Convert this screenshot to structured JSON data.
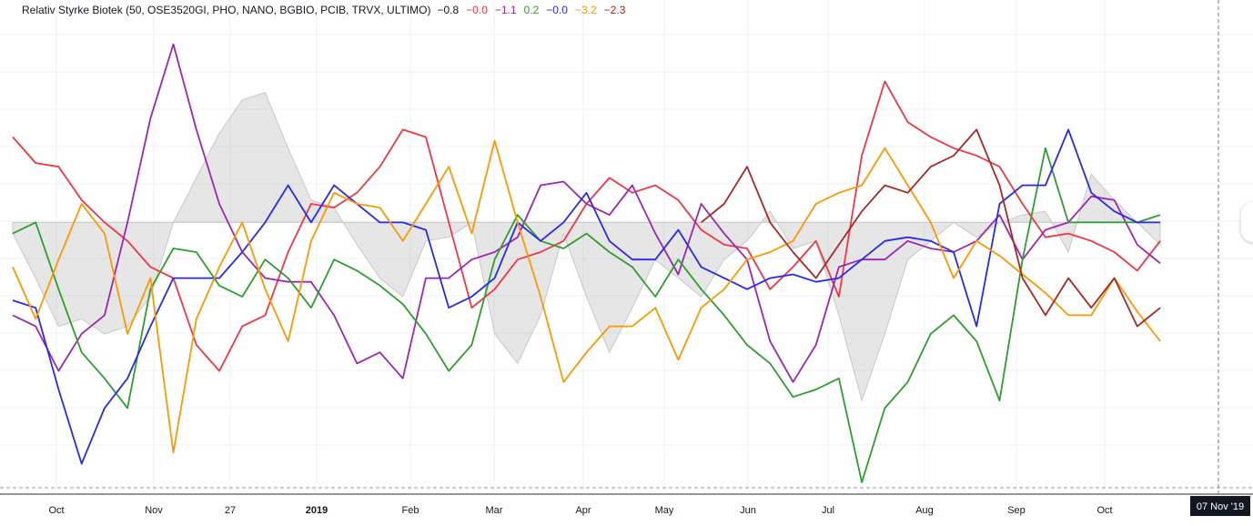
{
  "indicator": {
    "title": "Relativ Styrke Biotek (50, OSE3520GI, PHO, NANO, BGBIO, PCIB, TRVX, ULTIMO)",
    "values": [
      {
        "text": "−0.8",
        "color": "#131722"
      },
      {
        "text": "−0.0",
        "color": "#f23645"
      },
      {
        "text": "−1.1",
        "color": "#9c27b0"
      },
      {
        "text": "0.2",
        "color": "#2e9e2e"
      },
      {
        "text": "−0.0",
        "color": "#2a2ae8"
      },
      {
        "text": "−3.2",
        "color": "#ff9800"
      },
      {
        "text": "−2.3",
        "color": "#b71c1c"
      }
    ]
  },
  "x_axis": {
    "ticks": [
      "Oct",
      "Nov",
      "27",
      "2019",
      "Feb",
      "Mar",
      "Apr",
      "May",
      "Jun",
      "Jul",
      "Aug",
      "Sep",
      "Oct"
    ],
    "cursor_label": "07 Nov '19"
  },
  "chart_data": {
    "type": "line",
    "x_domain": [
      0,
      100
    ],
    "ylim": [
      -7,
      5.5
    ],
    "grid": true,
    "band": {
      "name": "",
      "x": [
        0,
        2,
        4,
        6,
        8,
        10,
        12,
        14,
        16,
        18,
        20,
        22,
        24,
        26,
        28,
        30,
        32,
        34,
        36,
        38,
        40,
        42,
        44,
        46,
        48,
        50,
        52,
        54,
        56,
        58,
        60,
        62,
        64,
        66,
        68,
        70,
        72,
        74,
        76,
        78,
        80,
        82,
        84,
        86,
        88,
        90,
        92,
        94,
        96,
        98,
        100
      ],
      "values": [
        -0.3,
        -1.5,
        -2.8,
        -2.6,
        -3.0,
        -2.8,
        -2.0,
        0.0,
        1.2,
        2.4,
        3.3,
        3.5,
        2.0,
        0.6,
        0.4,
        -0.6,
        -1.5,
        -2.0,
        -0.5,
        -0.4,
        0.0,
        -3.0,
        -3.8,
        -2.5,
        -0.3,
        -2.0,
        -3.5,
        -2.3,
        -1.0,
        -1.5,
        -2.0,
        -1.0,
        -0.5,
        0.3,
        -0.7,
        -0.5,
        -2.5,
        -4.8,
        -3.0,
        -1.0,
        -0.5,
        0.0,
        -0.4,
        0.0,
        0.2,
        0.3,
        -0.8,
        1.3,
        0.6,
        0.0,
        -0.6
      ]
    },
    "series": [
      {
        "color": "#f23645",
        "x": [
          0,
          2,
          4,
          6,
          8,
          10,
          12,
          14,
          16,
          18,
          20,
          22,
          24,
          26,
          28,
          30,
          32,
          34,
          36,
          38,
          40,
          42,
          44,
          46,
          48,
          50,
          52,
          54,
          56,
          58,
          60,
          62,
          64,
          66,
          68,
          70,
          72,
          74,
          76,
          78,
          80,
          82,
          84,
          86,
          88,
          90,
          92,
          94,
          96,
          98,
          100
        ],
        "values": [
          2.3,
          1.6,
          1.5,
          0.6,
          0.0,
          -0.5,
          -1.2,
          -1.5,
          -3.3,
          -4.0,
          -2.8,
          -2.5,
          -0.8,
          0.5,
          0.4,
          0.8,
          1.5,
          2.5,
          2.3,
          0.0,
          -2.3,
          -1.8,
          -1.0,
          -0.8,
          -0.5,
          0.5,
          1.2,
          0.8,
          1.0,
          0.6,
          -0.2,
          -0.6,
          -0.7,
          -1.8,
          -1.2,
          -0.5,
          -2.0,
          1.8,
          3.8,
          2.7,
          2.3,
          2.0,
          1.8,
          1.5,
          0.5,
          -0.4,
          -0.3,
          -0.5,
          -0.8,
          -1.3,
          -0.5
        ]
      },
      {
        "color": "#9c27b0",
        "x": [
          0,
          2,
          4,
          6,
          8,
          10,
          12,
          14,
          16,
          18,
          20,
          22,
          24,
          26,
          28,
          30,
          32,
          34,
          36,
          38,
          40,
          42,
          44,
          46,
          48,
          50,
          52,
          54,
          56,
          58,
          60,
          62,
          64,
          66,
          68,
          70,
          72,
          74,
          76,
          78,
          80,
          82,
          84,
          86,
          88,
          90,
          92,
          94,
          96,
          98,
          100
        ],
        "values": [
          -2.5,
          -2.8,
          -4.0,
          -3.0,
          -2.5,
          0.0,
          2.8,
          4.8,
          2.5,
          0.5,
          -0.8,
          -1.5,
          -1.6,
          -1.6,
          -2.5,
          -3.8,
          -3.5,
          -4.2,
          -1.5,
          -1.5,
          -1.0,
          -0.8,
          -0.4,
          1.0,
          1.1,
          0.5,
          0.2,
          1.0,
          -0.3,
          -1.4,
          0.5,
          -0.3,
          -1.0,
          -3.2,
          -4.3,
          -3.3,
          -1.2,
          -1.0,
          -1.0,
          -0.5,
          -0.7,
          -0.8,
          -0.5,
          0.2,
          -1.0,
          -0.2,
          0.0,
          0.7,
          0.6,
          -0.6,
          -1.1
        ]
      },
      {
        "color": "#2e9e2e",
        "x": [
          0,
          2,
          4,
          6,
          8,
          10,
          12,
          14,
          16,
          18,
          20,
          22,
          24,
          26,
          28,
          30,
          32,
          34,
          36,
          38,
          40,
          42,
          44,
          46,
          48,
          50,
          52,
          54,
          56,
          58,
          60,
          62,
          64,
          66,
          68,
          70,
          72,
          74,
          76,
          78,
          80,
          82,
          84,
          86,
          88,
          90,
          92,
          94,
          96,
          98,
          100
        ],
        "values": [
          -0.3,
          0.0,
          -1.8,
          -3.5,
          -4.2,
          -5.0,
          -1.8,
          -0.7,
          -0.8,
          -1.7,
          -2.0,
          -1.0,
          -1.5,
          -2.3,
          -1.0,
          -1.3,
          -1.7,
          -2.2,
          -3.0,
          -4.0,
          -3.3,
          -1.0,
          0.2,
          -0.5,
          -0.7,
          -0.3,
          -0.8,
          -1.2,
          -2.0,
          -1.0,
          -1.8,
          -2.5,
          -3.3,
          -3.8,
          -4.7,
          -4.5,
          -4.2,
          -7.0,
          -5.0,
          -4.3,
          -3.0,
          -2.5,
          -3.2,
          -4.8,
          -1.0,
          2.0,
          0.0,
          0.0,
          0.0,
          0.0,
          0.2
        ]
      },
      {
        "color": "#2a2ae8",
        "x": [
          0,
          2,
          4,
          6,
          8,
          10,
          12,
          14,
          16,
          18,
          20,
          22,
          24,
          26,
          28,
          30,
          32,
          34,
          36,
          38,
          40,
          42,
          44,
          46,
          48,
          50,
          52,
          54,
          56,
          58,
          60,
          62,
          64,
          66,
          68,
          70,
          72,
          74,
          76,
          78,
          80,
          82,
          84,
          86,
          88,
          90,
          92,
          94,
          96,
          98,
          100
        ],
        "values": [
          -2.1,
          -2.3,
          -4.5,
          -6.5,
          -5.0,
          -4.2,
          -2.8,
          -1.5,
          -1.5,
          -1.5,
          -0.8,
          0.0,
          1.0,
          0.0,
          1.0,
          0.5,
          0.0,
          0.0,
          -0.2,
          -2.3,
          -2.0,
          -1.5,
          0.0,
          -0.5,
          0.0,
          0.8,
          -0.5,
          -1.0,
          -1.0,
          -0.2,
          -1.2,
          -1.5,
          -1.8,
          -1.5,
          -1.4,
          -1.6,
          -1.5,
          -1.0,
          -0.5,
          -0.4,
          -0.5,
          -0.8,
          -2.8,
          0.5,
          1.0,
          1.0,
          2.5,
          0.8,
          0.3,
          0.0,
          0.0
        ]
      },
      {
        "color": "#ff9800",
        "x": [
          0,
          2,
          4,
          6,
          8,
          10,
          12,
          14,
          16,
          18,
          20,
          22,
          24,
          26,
          28,
          30,
          32,
          34,
          36,
          38,
          40,
          42,
          44,
          46,
          48,
          50,
          52,
          54,
          56,
          58,
          60,
          62,
          64,
          66,
          68,
          70,
          72,
          74,
          76,
          78,
          80,
          82,
          84,
          86,
          88,
          90,
          92,
          94,
          96,
          98,
          100
        ],
        "values": [
          -1.2,
          -2.6,
          -1.0,
          0.5,
          -0.3,
          -3.0,
          -1.5,
          -6.2,
          -2.6,
          -1.2,
          0.0,
          -1.8,
          -3.2,
          -0.5,
          0.8,
          0.5,
          0.4,
          -0.5,
          0.5,
          1.5,
          -0.3,
          2.2,
          0.0,
          -2.0,
          -4.3,
          -3.5,
          -2.8,
          -2.8,
          -2.3,
          -3.7,
          -2.3,
          -1.8,
          -1.0,
          -0.8,
          -0.5,
          0.5,
          0.8,
          1.0,
          2.0,
          1.0,
          0.0,
          -1.5,
          -0.5,
          -0.9,
          -1.4,
          -1.9,
          -2.5,
          -2.5,
          -1.5,
          -2.4,
          -3.2
        ]
      },
      {
        "color": "#a52a2a",
        "x": [
          60,
          62,
          64,
          66,
          68,
          70,
          72,
          74,
          76,
          78,
          80,
          82,
          84,
          86,
          88,
          90,
          92,
          94,
          96,
          98,
          100
        ],
        "values": [
          0.0,
          0.5,
          1.5,
          0.0,
          -0.8,
          -1.5,
          -0.6,
          0.3,
          1.0,
          0.8,
          1.5,
          1.8,
          2.5,
          1.0,
          -1.5,
          -2.5,
          -1.5,
          -2.3,
          -1.5,
          -2.8,
          -2.3
        ]
      }
    ]
  }
}
